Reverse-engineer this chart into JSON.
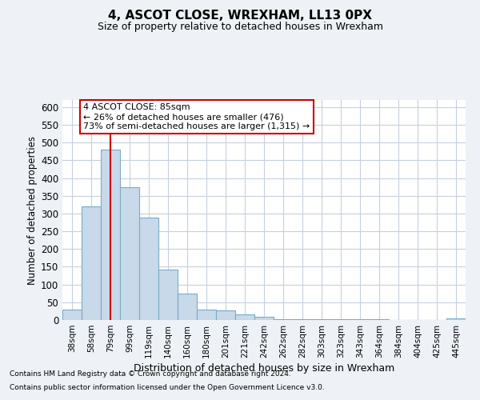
{
  "title": "4, ASCOT CLOSE, WREXHAM, LL13 0PX",
  "subtitle": "Size of property relative to detached houses in Wrexham",
  "xlabel": "Distribution of detached houses by size in Wrexham",
  "ylabel": "Number of detached properties",
  "bar_color": "#c8d9ea",
  "bar_edge_color": "#7aaac8",
  "annotation_line1": "4 ASCOT CLOSE: 85sqm",
  "annotation_line2": "← 26% of detached houses are smaller (476)",
  "annotation_line3": "73% of semi-detached houses are larger (1,315) →",
  "annotation_box_color": "#ffffff",
  "annotation_box_edge_color": "#cc0000",
  "vline_color": "#cc0000",
  "vline_x_idx": 2,
  "categories": [
    "38sqm",
    "58sqm",
    "79sqm",
    "99sqm",
    "119sqm",
    "140sqm",
    "160sqm",
    "180sqm",
    "201sqm",
    "221sqm",
    "242sqm",
    "262sqm",
    "282sqm",
    "303sqm",
    "323sqm",
    "343sqm",
    "364sqm",
    "384sqm",
    "404sqm",
    "425sqm",
    "445sqm"
  ],
  "values": [
    30,
    320,
    480,
    375,
    288,
    143,
    75,
    30,
    27,
    15,
    8,
    3,
    2,
    2,
    2,
    2,
    2,
    0,
    0,
    0,
    5
  ],
  "ylim": [
    0,
    620
  ],
  "yticks": [
    0,
    50,
    100,
    150,
    200,
    250,
    300,
    350,
    400,
    450,
    500,
    550,
    600
  ],
  "footnote1": "Contains HM Land Registry data © Crown copyright and database right 2024.",
  "footnote2": "Contains public sector information licensed under the Open Government Licence v3.0.",
  "bg_color": "#eef2f6",
  "plot_bg_color": "#ffffff",
  "grid_color": "#c5d0dc"
}
